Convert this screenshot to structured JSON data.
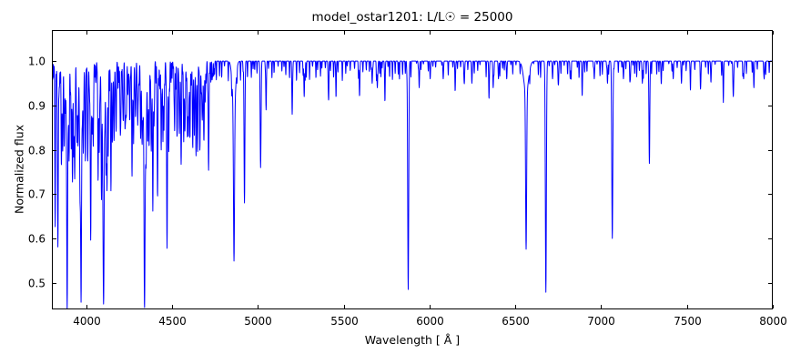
{
  "chart_data": {
    "type": "line",
    "title": "model_ostar1201: L/L☉ = 25000",
    "xlabel": "Wavelength [ Å ]",
    "ylabel": "Normalized flux",
    "xlim": [
      3800,
      8000
    ],
    "ylim": [
      0.44,
      1.07
    ],
    "xticks": [
      4000,
      4500,
      5000,
      5500,
      6000,
      6500,
      7000,
      7500,
      8000
    ],
    "yticks": [
      0.5,
      0.6,
      0.7,
      0.8,
      0.9,
      1.0
    ],
    "grid": false,
    "legend": "none",
    "line_color": "#0000ff",
    "axes_color": "#000000",
    "background_color": "#ffffff",
    "continuum": 1.0,
    "sample_step": 1.0,
    "absorption_lines": [
      [
        3819,
        0.66,
        2
      ],
      [
        3835,
        0.6,
        2.5
      ],
      [
        3856,
        0.79,
        2
      ],
      [
        3863,
        0.81,
        2
      ],
      [
        3872,
        0.84,
        2
      ],
      [
        3889,
        0.53,
        2.5
      ],
      [
        3889,
        0.88,
        8
      ],
      [
        3900,
        0.84,
        2
      ],
      [
        3913,
        0.81,
        2
      ],
      [
        3920,
        0.78,
        2
      ],
      [
        3927,
        0.82,
        2
      ],
      [
        3933,
        0.74,
        2
      ],
      [
        3946,
        0.84,
        2
      ],
      [
        3952,
        0.82,
        2
      ],
      [
        3964,
        0.78,
        2
      ],
      [
        3970,
        0.54,
        2.5
      ],
      [
        3970,
        0.88,
        8
      ],
      [
        3983,
        0.85,
        2
      ],
      [
        3995,
        0.78,
        2
      ],
      [
        4009,
        0.8,
        2
      ],
      [
        4026,
        0.62,
        2.5
      ],
      [
        4035,
        0.85,
        2
      ],
      [
        4041,
        0.81,
        2
      ],
      [
        4069,
        0.77,
        2
      ],
      [
        4076,
        0.8,
        2
      ],
      [
        4089,
        0.76,
        2
      ],
      [
        4101,
        0.52,
        3
      ],
      [
        4101,
        0.88,
        10
      ],
      [
        4116,
        0.83,
        2
      ],
      [
        4121,
        0.76,
        2
      ],
      [
        4128,
        0.8,
        2
      ],
      [
        4144,
        0.72,
        2
      ],
      [
        4153,
        0.85,
        2
      ],
      [
        4163,
        0.86,
        2
      ],
      [
        4174,
        0.85,
        2
      ],
      [
        4200,
        0.86,
        2
      ],
      [
        4215,
        0.88,
        2
      ],
      [
        4227,
        0.87,
        2
      ],
      [
        4233,
        0.88,
        2
      ],
      [
        4254,
        0.88,
        2
      ],
      [
        4267,
        0.79,
        2
      ],
      [
        4276,
        0.87,
        2
      ],
      [
        4287,
        0.88,
        2
      ],
      [
        4300,
        0.88,
        2
      ],
      [
        4317,
        0.85,
        2
      ],
      [
        4326,
        0.86,
        2
      ],
      [
        4340,
        0.52,
        3
      ],
      [
        4340,
        0.88,
        10
      ],
      [
        4349,
        0.83,
        2
      ],
      [
        4359,
        0.86,
        2
      ],
      [
        4367,
        0.85,
        2
      ],
      [
        4379,
        0.82,
        2
      ],
      [
        4388,
        0.7,
        2
      ],
      [
        4395,
        0.86,
        2
      ],
      [
        4415,
        0.81,
        2
      ],
      [
        4417,
        0.85,
        2
      ],
      [
        4437,
        0.86,
        2
      ],
      [
        4447,
        0.84,
        2
      ],
      [
        4453,
        0.87,
        2
      ],
      [
        4471,
        0.62,
        2.5
      ],
      [
        4481,
        0.8,
        2
      ],
      [
        4515,
        0.87,
        2
      ],
      [
        4530,
        0.85,
        2
      ],
      [
        4542,
        0.88,
        2
      ],
      [
        4553,
        0.79,
        2
      ],
      [
        4568,
        0.83,
        2
      ],
      [
        4575,
        0.85,
        2
      ],
      [
        4590,
        0.85,
        2
      ],
      [
        4596,
        0.86,
        2
      ],
      [
        4605,
        0.87,
        2
      ],
      [
        4621,
        0.87,
        2
      ],
      [
        4630,
        0.85,
        2
      ],
      [
        4640,
        0.84,
        2
      ],
      [
        4649,
        0.81,
        2
      ],
      [
        4662,
        0.86,
        2
      ],
      [
        4676,
        0.87,
        2
      ],
      [
        4686,
        0.85,
        2
      ],
      [
        4713,
        0.81,
        2
      ],
      [
        4861,
        0.61,
        3
      ],
      [
        4861,
        0.9,
        10
      ],
      [
        4922,
        0.68,
        2.5
      ],
      [
        5016,
        0.76,
        2.5
      ],
      [
        5048,
        0.89,
        2
      ],
      [
        5200,
        0.88,
        2
      ],
      [
        5270,
        0.92,
        2
      ],
      [
        5411,
        0.93,
        2
      ],
      [
        5455,
        0.95,
        2
      ],
      [
        5592,
        0.93,
        2
      ],
      [
        5666,
        0.95,
        2
      ],
      [
        5696,
        0.94,
        2
      ],
      [
        5740,
        0.94,
        2
      ],
      [
        5876,
        0.485,
        3
      ],
      [
        5940,
        0.94,
        2
      ],
      [
        6004,
        0.96,
        2
      ],
      [
        6080,
        0.96,
        2
      ],
      [
        6150,
        0.95,
        2
      ],
      [
        6203,
        0.95,
        2
      ],
      [
        6247,
        0.95,
        2
      ],
      [
        6347,
        0.93,
        2
      ],
      [
        6371,
        0.94,
        2
      ],
      [
        6402,
        0.96,
        2
      ],
      [
        6450,
        0.96,
        2
      ],
      [
        6563,
        0.62,
        3
      ],
      [
        6563,
        0.93,
        14
      ],
      [
        6678,
        0.49,
        3
      ],
      [
        6717,
        0.96,
        2
      ],
      [
        6750,
        0.95,
        2
      ],
      [
        6820,
        0.96,
        2
      ],
      [
        6890,
        0.94,
        2
      ],
      [
        6960,
        0.96,
        2
      ],
      [
        7037,
        0.95,
        2
      ],
      [
        7065,
        0.6,
        3
      ],
      [
        7130,
        0.96,
        2
      ],
      [
        7170,
        0.96,
        2
      ],
      [
        7240,
        0.95,
        2
      ],
      [
        7281,
        0.78,
        2.5
      ],
      [
        7350,
        0.96,
        2
      ],
      [
        7420,
        0.96,
        2
      ],
      [
        7468,
        0.95,
        2
      ],
      [
        7520,
        0.96,
        2
      ],
      [
        7580,
        0.95,
        2
      ],
      [
        7640,
        0.96,
        2
      ],
      [
        7712,
        0.94,
        2
      ],
      [
        7770,
        0.92,
        2.5
      ],
      [
        7830,
        0.96,
        2
      ],
      [
        7890,
        0.94,
        2
      ],
      [
        7950,
        0.96,
        2
      ]
    ],
    "microforest": [
      {
        "from": 3800,
        "to": 4750,
        "spacing": 5,
        "flux_min": 0.93,
        "flux_max": 0.985,
        "sigma": 1.3,
        "seed": 11
      },
      {
        "from": 4750,
        "to": 5900,
        "spacing": 16,
        "flux_min": 0.955,
        "flux_max": 0.99,
        "sigma": 1.3,
        "seed": 23
      },
      {
        "from": 5900,
        "to": 8000,
        "spacing": 24,
        "flux_min": 0.96,
        "flux_max": 0.995,
        "sigma": 1.3,
        "seed": 37
      }
    ]
  }
}
